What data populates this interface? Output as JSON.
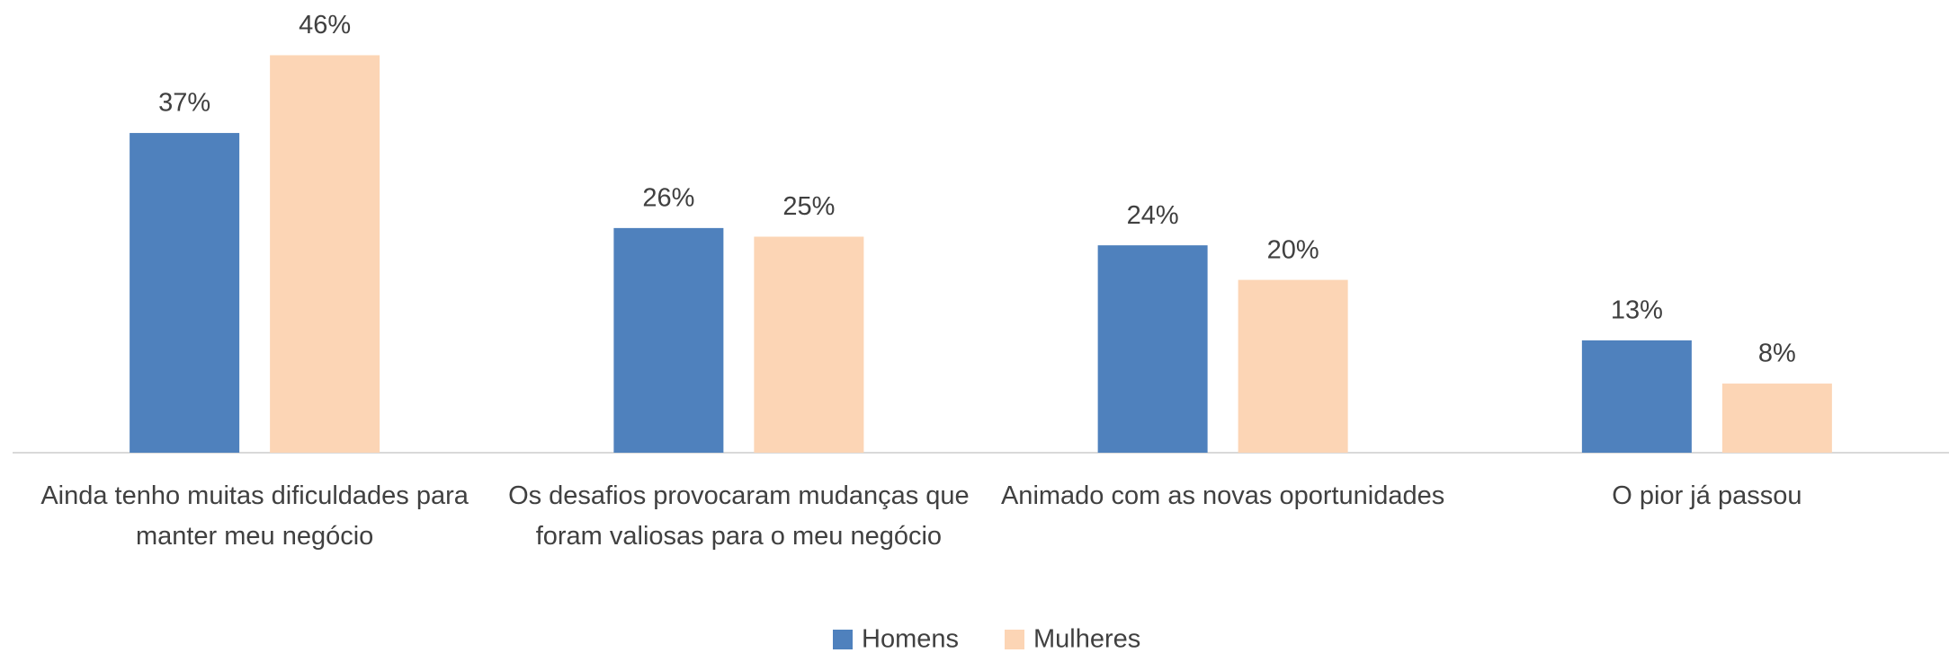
{
  "chart_data": {
    "type": "bar",
    "categories": [
      "Ainda tenho muitas dificuldades para manter meu negócio",
      "Os desafios provocaram mudanças que foram valiosas para o meu negócio",
      "Animado com as novas oportunidades",
      "O pior já passou"
    ],
    "series": [
      {
        "name": "Homens",
        "color": "#4f81bd",
        "values": [
          37,
          26,
          24,
          13
        ],
        "value_labels": [
          "37%",
          "26%",
          "24%",
          "13%"
        ]
      },
      {
        "name": "Mulheres",
        "color": "#fcd5b5",
        "values": [
          46,
          25,
          20,
          8
        ],
        "value_labels": [
          "46%",
          "25%",
          "20%",
          "8%"
        ]
      }
    ],
    "legend": "bottom"
  }
}
